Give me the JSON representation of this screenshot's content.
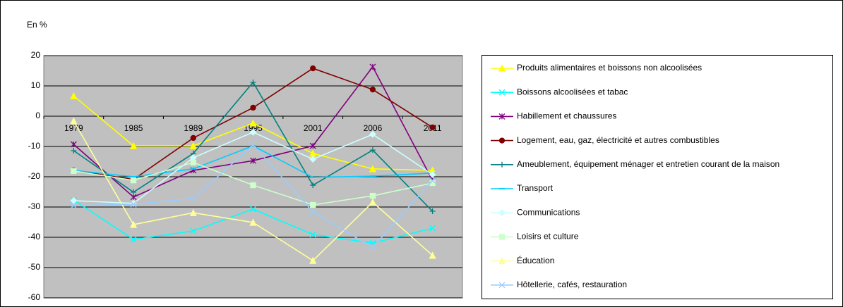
{
  "chart_data": {
    "type": "line",
    "y_label": "En %",
    "categories": [
      "1979",
      "1985",
      "1989",
      "1995",
      "2001",
      "2006",
      "2011"
    ],
    "ylim": [
      -60,
      20
    ],
    "yticks": [
      -60,
      -50,
      -40,
      -30,
      -20,
      -10,
      0,
      10,
      20
    ],
    "grid": true,
    "legend": "right",
    "series": [
      {
        "name": "Produits alimentaires et boissons non alcoolisées",
        "color": "#ffff00",
        "marker": "triangle",
        "values": [
          6.7,
          -9.8,
          -9.8,
          -2.3,
          -12.3,
          -17.4,
          -17.9
        ]
      },
      {
        "name": "Boissons alcoolisées et tabac",
        "color": "#00ffff",
        "marker": "x",
        "values": [
          -27.7,
          -40.7,
          -37.9,
          -30.7,
          -39.1,
          -41.9,
          -37
        ]
      },
      {
        "name": "Habillement et chaussures",
        "color": "#800080",
        "marker": "star",
        "values": [
          -9.3,
          -26.7,
          -17.9,
          -14.7,
          -9.8,
          16.3,
          -21.2
        ]
      },
      {
        "name": "Logement, eau, gaz, électricité et autres combustibles",
        "color": "#800000",
        "marker": "circle",
        "values": [
          -17.9,
          -20.9,
          -7.2,
          2.8,
          15.8,
          8.8,
          -3.7
        ]
      },
      {
        "name": "Ameublement, équipement ménager et entretien courant de la maison",
        "color": "#008080",
        "marker": "plus",
        "values": [
          -11.4,
          -25.1,
          -12.3,
          11.2,
          -22.8,
          -11.2,
          -31.4
        ]
      },
      {
        "name": "Transport",
        "color": "#00ccff",
        "marker": "dash",
        "values": [
          -17.9,
          -20,
          -17.4,
          -9.8,
          -20.2,
          -19.8,
          -18.8
        ]
      },
      {
        "name": "Communications",
        "color": "#ccffff",
        "marker": "diamond",
        "values": [
          -27.9,
          -28.8,
          -13.7,
          -5.3,
          -14.2,
          -6,
          -19.3
        ]
      },
      {
        "name": "Loisirs et culture",
        "color": "#ccffcc",
        "marker": "square",
        "values": [
          -18.1,
          -21.2,
          -15.3,
          -22.8,
          -29.3,
          -26.3,
          -22.1
        ]
      },
      {
        "name": "Éducation",
        "color": "#ffff99",
        "marker": "triangle",
        "values": [
          -1.6,
          -35.8,
          -31.9,
          -35.1,
          -47.7,
          -28.4,
          -46
        ]
      },
      {
        "name": "Hôtellerie, cafés, restauration",
        "color": "#99ccff",
        "marker": "x",
        "values": [
          -29.5,
          -29.1,
          -27.2,
          -9.5,
          -31.6,
          -43.3,
          -21.2
        ]
      }
    ]
  }
}
